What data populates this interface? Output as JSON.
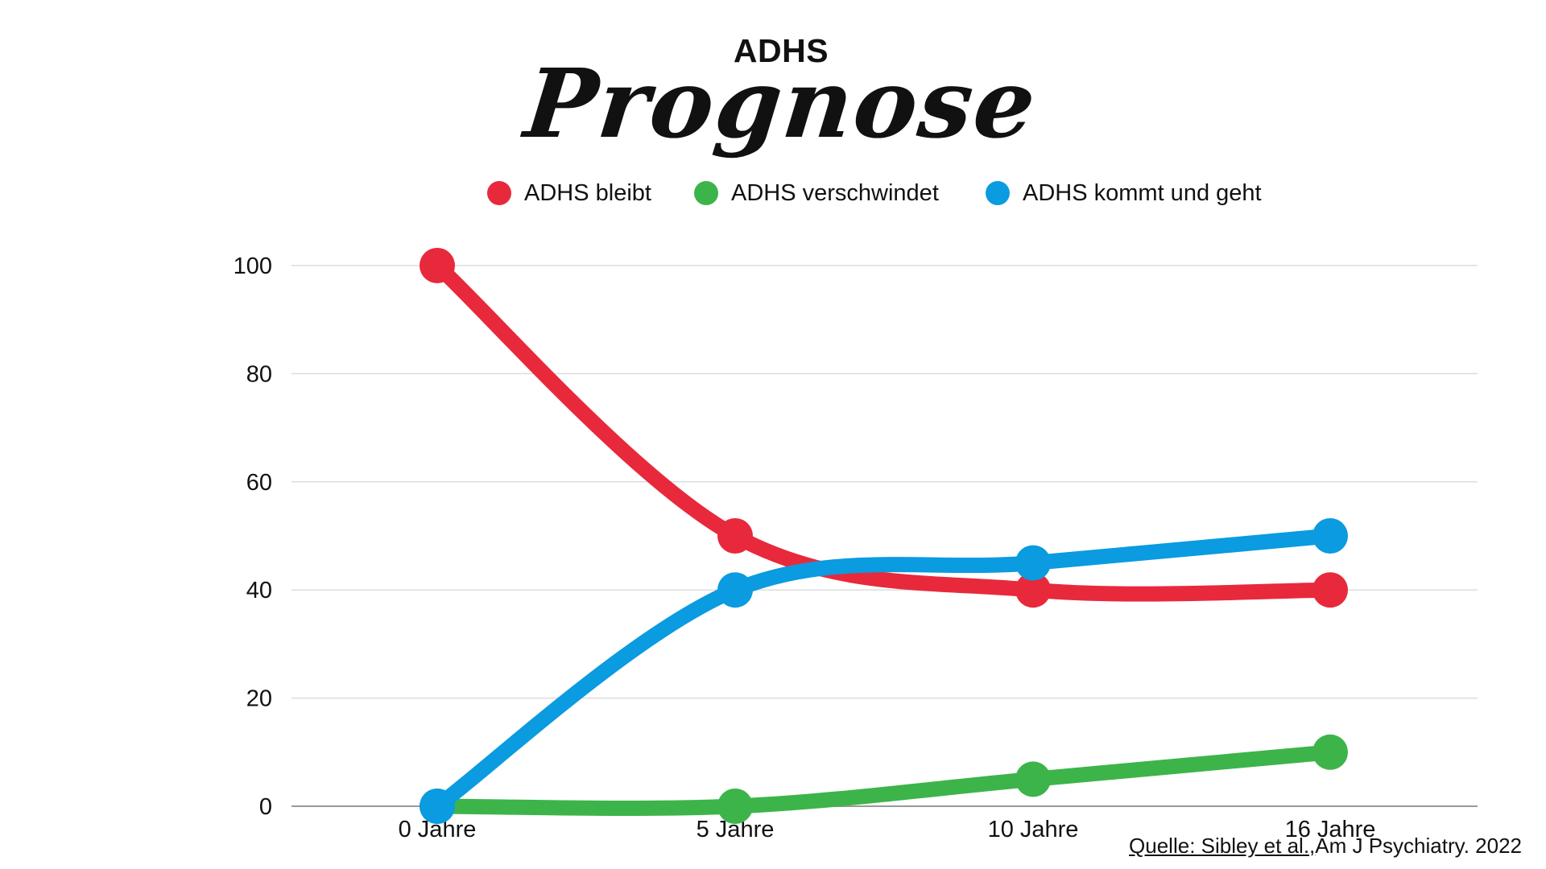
{
  "header": {
    "title_top": "ADHS",
    "title_script": "Prognose"
  },
  "source": {
    "link_text": "Quelle: Sibley et al.,",
    "rest_text": "Am J Psychiatry. 2022"
  },
  "colors": {
    "red": "#E8293C",
    "green": "#3CB44A",
    "blue": "#0A9BE0",
    "grid": "#DDDDDD",
    "axis": "#999999"
  },
  "chart_data": {
    "type": "line",
    "title": "Prognose",
    "categories": [
      "0 Jahre",
      "5 Jahre",
      "10 Jahre",
      "16 Jahre"
    ],
    "y_ticks": [
      0,
      20,
      40,
      60,
      80,
      100
    ],
    "ylim": [
      0,
      100
    ],
    "grid": true,
    "legend_position": "top-center",
    "series": [
      {
        "name": "ADHS bleibt",
        "color": "#E8293C",
        "values": [
          100,
          50,
          40,
          40
        ]
      },
      {
        "name": "ADHS verschwindet",
        "color": "#3CB44A",
        "values": [
          0,
          0,
          5,
          10
        ]
      },
      {
        "name": "ADHS kommt und geht",
        "color": "#0A9BE0",
        "values": [
          0,
          40,
          45,
          50
        ]
      }
    ]
  }
}
